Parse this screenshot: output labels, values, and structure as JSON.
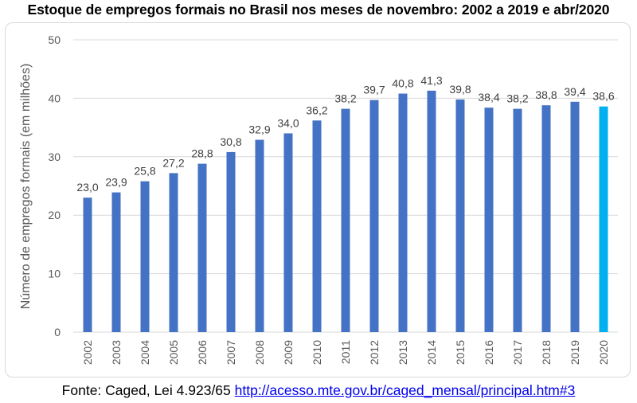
{
  "title": "Estoque de empregos formais no Brasil nos meses de novembro: 2002 a 2019 e abr/2020",
  "source": {
    "prefix": "Fonte: Caged, Lei 4.923/65 ",
    "link_text": "http://acesso.mte.gov.br/caged_mensal/principal.htm#3"
  },
  "colors": {
    "bar": "#4472c4",
    "highlight": "#00b0f0",
    "grid": "#d9d9d9"
  },
  "chart_data": {
    "type": "bar",
    "title": "",
    "xlabel": "",
    "ylabel": "Número de empregos formais (em milhões)",
    "categories": [
      "2002",
      "2003",
      "2004",
      "2005",
      "2006",
      "2007",
      "2008",
      "2009",
      "2010",
      "2011",
      "2012",
      "2013",
      "2014",
      "2015",
      "2016",
      "2017",
      "2018",
      "2019",
      "2020"
    ],
    "values": [
      23.0,
      23.9,
      25.8,
      27.2,
      28.8,
      30.8,
      32.9,
      34.0,
      36.2,
      38.2,
      39.7,
      40.8,
      41.3,
      39.8,
      38.4,
      38.2,
      38.8,
      39.4,
      38.6
    ],
    "data_labels": [
      "23,0",
      "23,9",
      "25,8",
      "27,2",
      "28,8",
      "30,8",
      "32,9",
      "34,0",
      "36,2",
      "38,2",
      "39,7",
      "40,8",
      "41,3",
      "39,8",
      "38,4",
      "38,2",
      "38,8",
      "39,4",
      "38,6"
    ],
    "highlight_index": 18,
    "yticks": [
      "0",
      "10",
      "20",
      "30",
      "40",
      "50"
    ],
    "ylim": [
      0,
      50
    ],
    "grid": true,
    "legend": "none"
  }
}
